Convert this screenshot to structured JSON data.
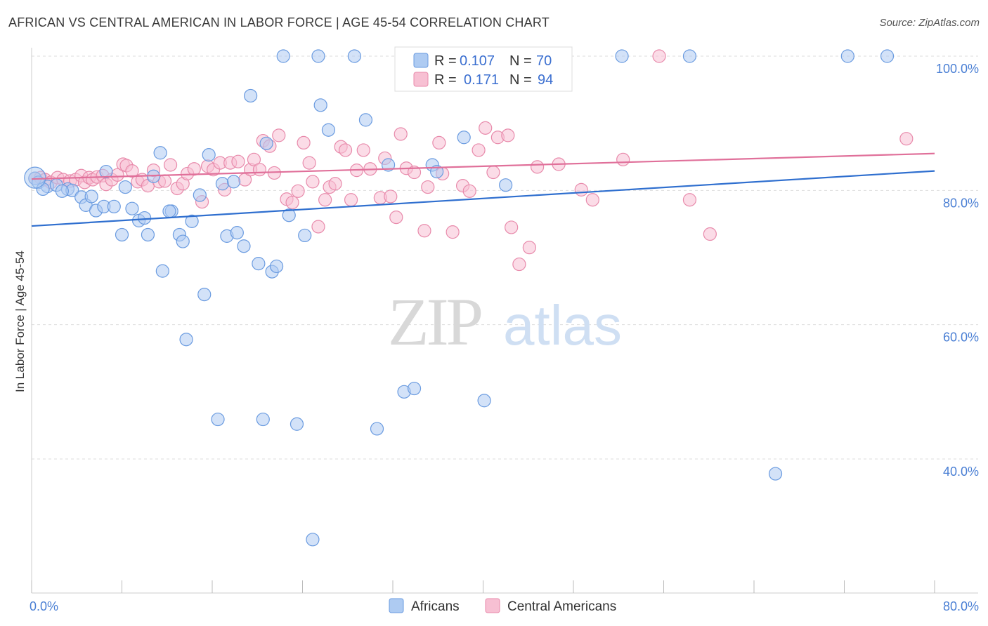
{
  "title": "AFRICAN VS CENTRAL AMERICAN IN LABOR FORCE | AGE 45-54 CORRELATION CHART",
  "source": "Source: ZipAtlas.com",
  "watermark": {
    "zip": "ZIP",
    "atlas": "atlas"
  },
  "colors": {
    "africans_fill": "#aecbf2",
    "africans_stroke": "#6a9be0",
    "africans_line": "#2f6fcf",
    "central_fill": "#f7c0d3",
    "central_stroke": "#e88aab",
    "central_line": "#e0709a",
    "tick": "#4a7fd4",
    "grid": "#dddddd"
  },
  "legend": {
    "r_label": "R =",
    "n_label": "N =",
    "africans": {
      "r": "0.107",
      "n": "70"
    },
    "central": {
      "r": "0.171",
      "n": "94"
    }
  },
  "chart_data": {
    "type": "scatter",
    "title": "AFRICAN VS CENTRAL AMERICAN IN LABOR FORCE | AGE 45-54 CORRELATION CHART",
    "xlabel": "",
    "ylabel": "In Labor Force | Age 45-54",
    "xlim": [
      0,
      80
    ],
    "ylim": [
      20,
      103
    ],
    "x_tick_labels": [
      {
        "value": 0,
        "label": "0.0%"
      },
      {
        "value": 80,
        "label": "80.0%"
      }
    ],
    "y_tick_labels": [
      {
        "value": 100,
        "label": "100.0%"
      },
      {
        "value": 80,
        "label": "80.0%"
      },
      {
        "value": 60,
        "label": "60.0%"
      },
      {
        "value": 40,
        "label": "40.0%"
      }
    ],
    "grid": true,
    "legend_position": "top-center",
    "series": [
      {
        "name": "Africans",
        "trend": [
          [
            0,
            74.7
          ],
          [
            80,
            82.9
          ]
        ],
        "points": [
          [
            0.3,
            81.8
          ],
          [
            0.6,
            81.2
          ],
          [
            1.4,
            80.6
          ],
          [
            2.2,
            80.8
          ],
          [
            3.2,
            80.2
          ],
          [
            3.6,
            80.0
          ],
          [
            4.4,
            79.0
          ],
          [
            4.8,
            77.8
          ],
          [
            5.3,
            79.1
          ],
          [
            5.7,
            77.0
          ],
          [
            6.4,
            77.6
          ],
          [
            6.6,
            82.8
          ],
          [
            7.3,
            77.6
          ],
          [
            8.0,
            73.4
          ],
          [
            8.3,
            80.5
          ],
          [
            8.9,
            77.3
          ],
          [
            9.5,
            75.5
          ],
          [
            10.0,
            75.9
          ],
          [
            10.3,
            73.4
          ],
          [
            10.8,
            82.1
          ],
          [
            11.4,
            85.6
          ],
          [
            11.6,
            68.0
          ],
          [
            12.4,
            76.9
          ],
          [
            13.1,
            73.4
          ],
          [
            13.4,
            72.4
          ],
          [
            13.7,
            57.8
          ],
          [
            14.2,
            75.4
          ],
          [
            14.9,
            79.3
          ],
          [
            15.3,
            64.5
          ],
          [
            15.7,
            85.3
          ],
          [
            16.5,
            45.9
          ],
          [
            16.9,
            81.0
          ],
          [
            17.3,
            73.2
          ],
          [
            17.9,
            81.3
          ],
          [
            18.2,
            73.7
          ],
          [
            18.8,
            71.7
          ],
          [
            19.4,
            94.1
          ],
          [
            20.1,
            69.1
          ],
          [
            20.5,
            45.9
          ],
          [
            20.8,
            87.0
          ],
          [
            21.3,
            67.9
          ],
          [
            21.7,
            68.7
          ],
          [
            22.3,
            100.0
          ],
          [
            22.8,
            76.3
          ],
          [
            23.5,
            45.2
          ],
          [
            24.2,
            73.3
          ],
          [
            24.9,
            28.0
          ],
          [
            25.4,
            100.0
          ],
          [
            25.6,
            92.7
          ],
          [
            26.3,
            89.0
          ],
          [
            28.6,
            100.0
          ],
          [
            29.6,
            90.5
          ],
          [
            30.6,
            44.5
          ],
          [
            31.6,
            83.8
          ],
          [
            33.0,
            50.0
          ],
          [
            33.9,
            50.5
          ],
          [
            35.5,
            83.8
          ],
          [
            35.9,
            82.8
          ],
          [
            38.3,
            87.9
          ],
          [
            40.1,
            48.7
          ],
          [
            42.0,
            80.8
          ],
          [
            43.1,
            100.0
          ],
          [
            52.3,
            100.0
          ],
          [
            58.3,
            100.0
          ],
          [
            65.9,
            37.8
          ],
          [
            72.3,
            100.0
          ],
          [
            75.8,
            100.0
          ],
          [
            1.0,
            80.2
          ],
          [
            2.7,
            79.9
          ],
          [
            12.2,
            76.9
          ]
        ]
      },
      {
        "name": "Central Americans",
        "trend": [
          [
            0,
            81.7
          ],
          [
            80,
            85.5
          ]
        ],
        "points": [
          [
            0.3,
            81.8
          ],
          [
            0.8,
            81.9
          ],
          [
            1.2,
            81.6
          ],
          [
            1.7,
            81.2
          ],
          [
            2.3,
            81.9
          ],
          [
            2.8,
            81.6
          ],
          [
            3.4,
            81.4
          ],
          [
            3.9,
            81.6
          ],
          [
            4.4,
            82.2
          ],
          [
            4.7,
            81.2
          ],
          [
            5.1,
            81.9
          ],
          [
            5.4,
            81.6
          ],
          [
            5.8,
            82.0
          ],
          [
            6.3,
            82.2
          ],
          [
            6.6,
            80.9
          ],
          [
            7.1,
            81.6
          ],
          [
            7.6,
            82.3
          ],
          [
            8.1,
            83.9
          ],
          [
            8.4,
            83.7
          ],
          [
            8.9,
            82.9
          ],
          [
            9.4,
            81.3
          ],
          [
            9.8,
            81.6
          ],
          [
            10.3,
            80.7
          ],
          [
            10.8,
            83.0
          ],
          [
            11.3,
            81.3
          ],
          [
            11.8,
            81.4
          ],
          [
            12.3,
            83.8
          ],
          [
            12.9,
            80.3
          ],
          [
            13.4,
            81.0
          ],
          [
            13.8,
            82.5
          ],
          [
            14.4,
            83.2
          ],
          [
            15.1,
            78.3
          ],
          [
            15.6,
            83.6
          ],
          [
            16.1,
            83.1
          ],
          [
            16.7,
            84.1
          ],
          [
            17.1,
            80.1
          ],
          [
            17.6,
            84.1
          ],
          [
            18.3,
            84.3
          ],
          [
            18.9,
            81.6
          ],
          [
            19.4,
            83.1
          ],
          [
            19.7,
            84.6
          ],
          [
            20.2,
            83.1
          ],
          [
            20.5,
            87.4
          ],
          [
            21.1,
            86.6
          ],
          [
            21.5,
            82.6
          ],
          [
            21.9,
            88.2
          ],
          [
            22.6,
            78.7
          ],
          [
            23.1,
            78.2
          ],
          [
            23.6,
            79.9
          ],
          [
            24.1,
            87.1
          ],
          [
            24.6,
            84.1
          ],
          [
            24.9,
            81.3
          ],
          [
            25.4,
            74.6
          ],
          [
            26.0,
            78.6
          ],
          [
            26.4,
            80.5
          ],
          [
            26.9,
            81.0
          ],
          [
            27.4,
            86.5
          ],
          [
            27.8,
            86.0
          ],
          [
            28.3,
            78.6
          ],
          [
            28.8,
            83.0
          ],
          [
            29.4,
            86.0
          ],
          [
            30.0,
            83.2
          ],
          [
            30.9,
            78.9
          ],
          [
            31.3,
            84.8
          ],
          [
            31.8,
            79.1
          ],
          [
            32.3,
            76.0
          ],
          [
            32.7,
            88.4
          ],
          [
            33.2,
            83.3
          ],
          [
            33.9,
            82.7
          ],
          [
            34.8,
            74.0
          ],
          [
            35.1,
            80.5
          ],
          [
            36.1,
            87.1
          ],
          [
            36.4,
            82.5
          ],
          [
            37.3,
            73.8
          ],
          [
            38.2,
            80.7
          ],
          [
            38.8,
            79.9
          ],
          [
            39.6,
            86.0
          ],
          [
            40.2,
            89.3
          ],
          [
            40.9,
            82.7
          ],
          [
            41.3,
            87.9
          ],
          [
            42.2,
            88.2
          ],
          [
            42.5,
            74.5
          ],
          [
            43.2,
            69.0
          ],
          [
            44.1,
            71.5
          ],
          [
            44.8,
            83.5
          ],
          [
            45.3,
            100.0
          ],
          [
            46.7,
            83.9
          ],
          [
            48.7,
            80.1
          ],
          [
            49.7,
            78.6
          ],
          [
            52.4,
            84.6
          ],
          [
            55.6,
            100.0
          ],
          [
            58.3,
            78.6
          ],
          [
            60.1,
            73.5
          ],
          [
            77.5,
            87.7
          ]
        ]
      }
    ]
  }
}
